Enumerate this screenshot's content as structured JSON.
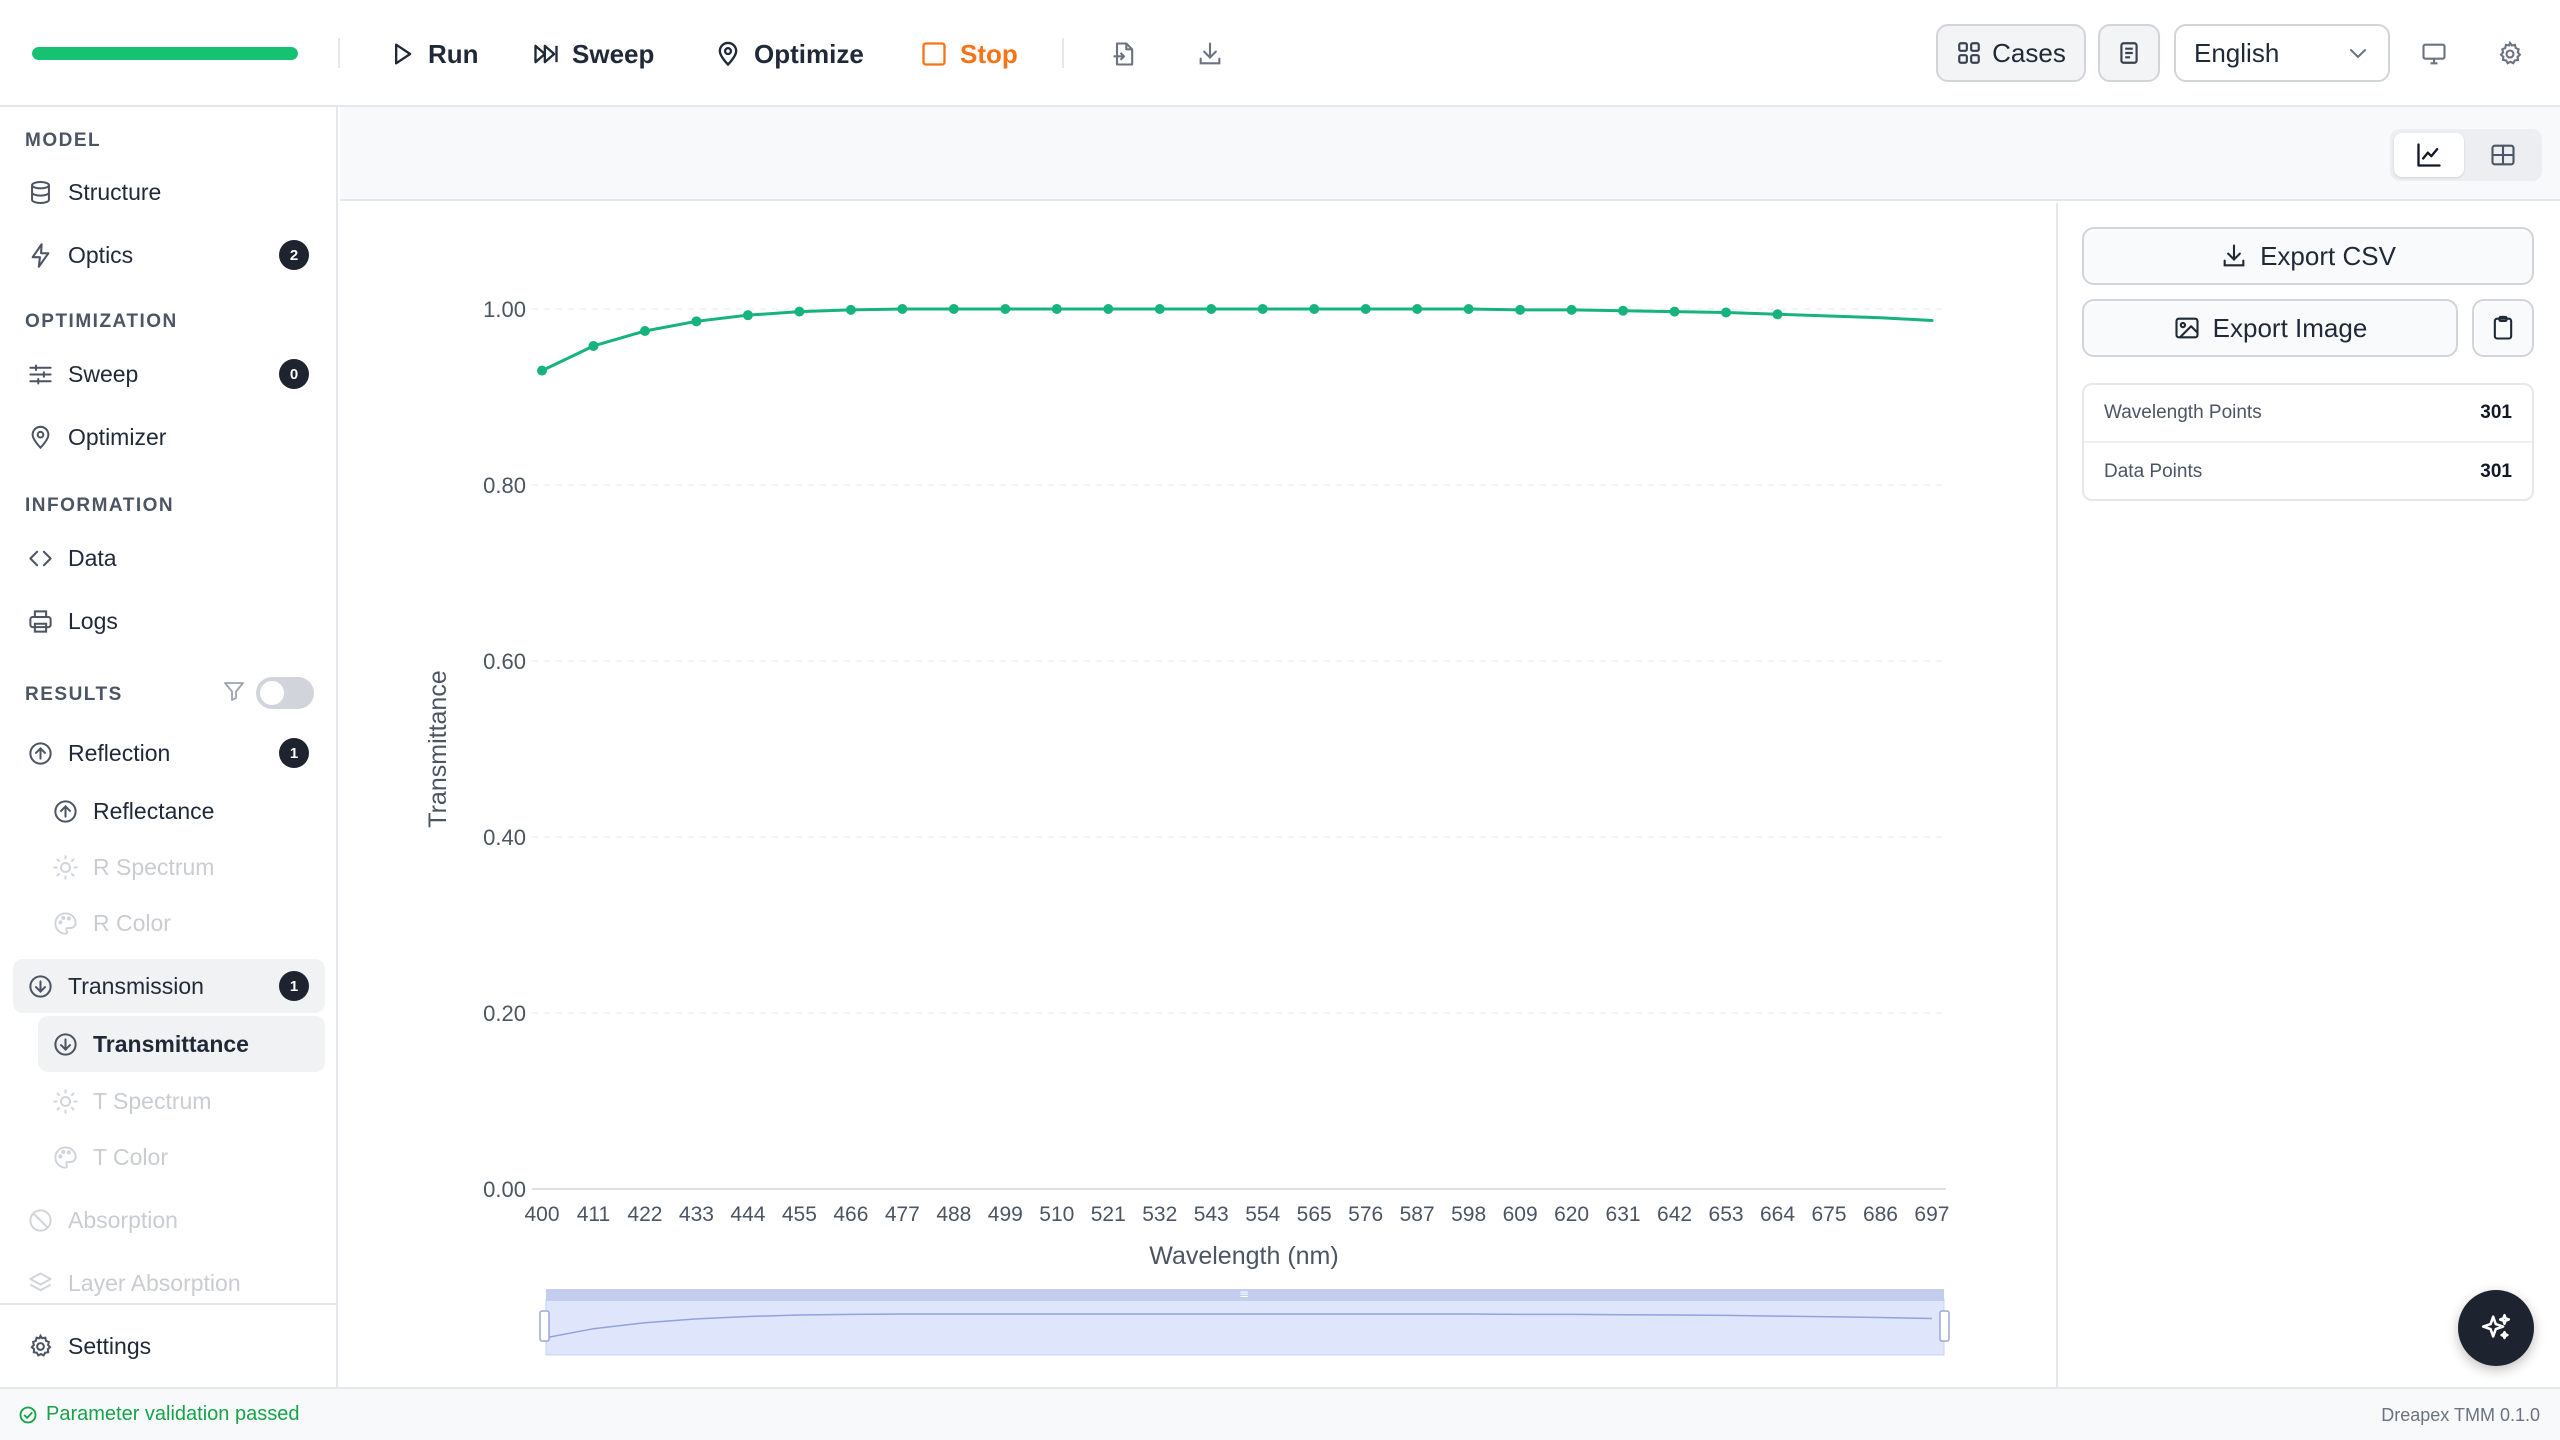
{
  "toolbar": {
    "progress_percent": 100,
    "run_label": "Run",
    "sweep_label": "Sweep",
    "optimize_label": "Optimize",
    "stop_label": "Stop",
    "import_icon": "file-import-icon",
    "download_icon": "download-icon",
    "cases_label": "Cases",
    "language": "English",
    "monitor_icon": "monitor-icon",
    "settings_icon": "gear-icon"
  },
  "sidebar": {
    "model_label": "MODEL",
    "structure_label": "Structure",
    "optics_label": "Optics",
    "optics_count": "2",
    "optimization_label": "OPTIMIZATION",
    "sweep_label": "Sweep",
    "sweep_count": "0",
    "optimizer_label": "Optimizer",
    "information_label": "INFORMATION",
    "data_label": "Data",
    "logs_label": "Logs",
    "results_label": "RESULTS",
    "results_filter_enabled": false,
    "reflection_label": "Reflection",
    "reflection_count": "1",
    "reflectance_label": "Reflectance",
    "r_spectrum_label": "R Spectrum",
    "r_color_label": "R Color",
    "transmission_label": "Transmission",
    "transmission_count": "1",
    "transmittance_label": "Transmittance",
    "t_spectrum_label": "T Spectrum",
    "t_color_label": "T Color",
    "absorption_label": "Absorption",
    "layer_absorption_label": "Layer Absorption",
    "settings_label": "Settings"
  },
  "right_panel": {
    "export_csv_label": "Export CSV",
    "export_image_label": "Export Image",
    "stats": [
      {
        "label": "Wavelength Points",
        "value": "301"
      },
      {
        "label": "Data Points",
        "value": "301"
      }
    ]
  },
  "status": {
    "message": "Parameter validation passed",
    "version": "Dreapex TMM 0.1.0"
  },
  "colors": {
    "series": "#16b47c",
    "accent_stop": "#f97316",
    "progress": "#16c172",
    "status_ok": "#16a34a"
  },
  "chart_data": {
    "type": "line",
    "title": "",
    "xlabel": "Wavelength (nm)",
    "ylabel": "Transmittance",
    "x": [
      400,
      411,
      422,
      433,
      444,
      455,
      466,
      477,
      488,
      499,
      510,
      521,
      532,
      543,
      554,
      565,
      576,
      587,
      598,
      609,
      620,
      631,
      642,
      653,
      664,
      675,
      686,
      697
    ],
    "marker_x": [
      400,
      411,
      422,
      433,
      444,
      455,
      466,
      477,
      488,
      499,
      510,
      521,
      532,
      543,
      554,
      565,
      576,
      587,
      598,
      609,
      620,
      631,
      642,
      653,
      664
    ],
    "series": [
      {
        "name": "",
        "values": [
          0.93,
          0.958,
          0.975,
          0.986,
          0.993,
          0.997,
          0.999,
          1.0,
          1.0,
          1.0,
          1.0,
          1.0,
          1.0,
          1.0,
          1.0,
          1.0,
          1.0,
          1.0,
          1.0,
          0.999,
          0.999,
          0.998,
          0.997,
          0.996,
          0.994,
          0.992,
          0.99,
          0.987
        ]
      }
    ],
    "xlim": [
      400,
      700
    ],
    "ylim": [
      0,
      1.0
    ],
    "yticks": [
      0.0,
      0.2,
      0.4,
      0.6,
      0.8,
      1.0
    ],
    "ytick_labels": [
      "0.00",
      "0.20",
      "0.40",
      "0.60",
      "0.80",
      "1.00"
    ],
    "xtick_labels": [
      "400",
      "411",
      "422",
      "433",
      "444",
      "455",
      "466",
      "477",
      "488",
      "499",
      "510",
      "521",
      "532",
      "543",
      "554",
      "565",
      "576",
      "587",
      "598",
      "609",
      "620",
      "631",
      "642",
      "653",
      "664",
      "675",
      "686",
      "697"
    ],
    "grid": true,
    "legend": "none",
    "range_slider": true
  }
}
